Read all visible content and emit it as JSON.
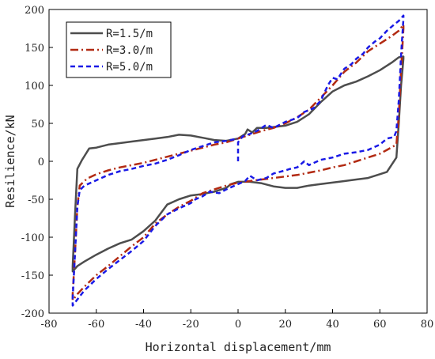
{
  "chart_data": {
    "type": "line",
    "xlabel": "Horizontal displacement/mm",
    "ylabel": "Resilience/kN",
    "xlim": [
      -80,
      80
    ],
    "ylim": [
      -200,
      200
    ],
    "xticks": [
      -80,
      -60,
      -40,
      -20,
      0,
      20,
      40,
      60,
      80
    ],
    "yticks": [
      -200,
      -150,
      -100,
      -50,
      0,
      50,
      100,
      150,
      200
    ],
    "grid": false,
    "legend_position": "top-left",
    "series": [
      {
        "name": "R=1.5/m",
        "color": "#4d4d4d",
        "dash": "solid",
        "points": [
          [
            0,
            30
          ],
          [
            3,
            36
          ],
          [
            4,
            42
          ],
          [
            6,
            38
          ],
          [
            8,
            44
          ],
          [
            12,
            44
          ],
          [
            20,
            47
          ],
          [
            25,
            52
          ],
          [
            30,
            62
          ],
          [
            35,
            78
          ],
          [
            40,
            92
          ],
          [
            45,
            100
          ],
          [
            50,
            105
          ],
          [
            55,
            112
          ],
          [
            60,
            120
          ],
          [
            65,
            130
          ],
          [
            68,
            137
          ],
          [
            70,
            138
          ],
          [
            70,
            135
          ],
          [
            69,
            100
          ],
          [
            68,
            50
          ],
          [
            67,
            5
          ],
          [
            63,
            -14
          ],
          [
            60,
            -17
          ],
          [
            55,
            -22
          ],
          [
            50,
            -24
          ],
          [
            45,
            -26
          ],
          [
            40,
            -28
          ],
          [
            35,
            -30
          ],
          [
            30,
            -32
          ],
          [
            25,
            -35
          ],
          [
            20,
            -35
          ],
          [
            15,
            -33
          ],
          [
            10,
            -29
          ],
          [
            5,
            -27
          ],
          [
            0,
            -27
          ],
          [
            -3,
            -30
          ],
          [
            -5,
            -35
          ],
          [
            -10,
            -40
          ],
          [
            -15,
            -43
          ],
          [
            -20,
            -45
          ],
          [
            -25,
            -50
          ],
          [
            -30,
            -57
          ],
          [
            -35,
            -78
          ],
          [
            -40,
            -92
          ],
          [
            -45,
            -103
          ],
          [
            -50,
            -108
          ],
          [
            -55,
            -115
          ],
          [
            -60,
            -123
          ],
          [
            -65,
            -132
          ],
          [
            -68,
            -138
          ],
          [
            -70,
            -145
          ],
          [
            -70,
            -138
          ],
          [
            -69,
            -70
          ],
          [
            -68,
            -10
          ],
          [
            -66,
            2
          ],
          [
            -63,
            17
          ],
          [
            -60,
            18
          ],
          [
            -55,
            22
          ],
          [
            -50,
            24
          ],
          [
            -45,
            26
          ],
          [
            -40,
            28
          ],
          [
            -35,
            30
          ],
          [
            -30,
            32
          ],
          [
            -25,
            35
          ],
          [
            -20,
            34
          ],
          [
            -15,
            31
          ],
          [
            -10,
            28
          ],
          [
            -5,
            27
          ],
          [
            0,
            30
          ]
        ]
      },
      {
        "name": "R=3.0/m",
        "color": "#b22a12",
        "dash": "dashdot",
        "points": [
          [
            0,
            30
          ],
          [
            5,
            35
          ],
          [
            10,
            40
          ],
          [
            15,
            44
          ],
          [
            20,
            50
          ],
          [
            25,
            58
          ],
          [
            30,
            68
          ],
          [
            35,
            84
          ],
          [
            40,
            100
          ],
          [
            45,
            118
          ],
          [
            50,
            130
          ],
          [
            55,
            145
          ],
          [
            60,
            155
          ],
          [
            65,
            165
          ],
          [
            68,
            172
          ],
          [
            70,
            180
          ],
          [
            70,
            175
          ],
          [
            69,
            120
          ],
          [
            68,
            60
          ],
          [
            67,
            22
          ],
          [
            63,
            15
          ],
          [
            60,
            10
          ],
          [
            55,
            5
          ],
          [
            50,
            0
          ],
          [
            45,
            -5
          ],
          [
            40,
            -8
          ],
          [
            35,
            -12
          ],
          [
            30,
            -15
          ],
          [
            25,
            -18
          ],
          [
            20,
            -20
          ],
          [
            15,
            -22
          ],
          [
            10,
            -24
          ],
          [
            5,
            -26
          ],
          [
            0,
            -28
          ],
          [
            -5,
            -32
          ],
          [
            -10,
            -37
          ],
          [
            -15,
            -42
          ],
          [
            -20,
            -52
          ],
          [
            -25,
            -60
          ],
          [
            -30,
            -70
          ],
          [
            -35,
            -82
          ],
          [
            -40,
            -100
          ],
          [
            -45,
            -112
          ],
          [
            -50,
            -125
          ],
          [
            -55,
            -138
          ],
          [
            -60,
            -150
          ],
          [
            -65,
            -165
          ],
          [
            -68,
            -175
          ],
          [
            -70,
            -183
          ],
          [
            -70,
            -175
          ],
          [
            -69,
            -120
          ],
          [
            -68,
            -60
          ],
          [
            -67,
            -32
          ],
          [
            -64,
            -23
          ],
          [
            -60,
            -17
          ],
          [
            -55,
            -12
          ],
          [
            -50,
            -8
          ],
          [
            -45,
            -5
          ],
          [
            -40,
            -2
          ],
          [
            -35,
            2
          ],
          [
            -30,
            6
          ],
          [
            -25,
            10
          ],
          [
            -20,
            14
          ],
          [
            -15,
            18
          ],
          [
            -10,
            22
          ],
          [
            -5,
            25
          ],
          [
            0,
            30
          ]
        ]
      },
      {
        "name": "R=5.0/m",
        "color": "#1a1ae6",
        "dash": "dashed",
        "points": [
          [
            0,
            0
          ],
          [
            0,
            25
          ],
          [
            2,
            33
          ],
          [
            5,
            36
          ],
          [
            8,
            40
          ],
          [
            12,
            48
          ],
          [
            15,
            44
          ],
          [
            20,
            52
          ],
          [
            25,
            57
          ],
          [
            28,
            65
          ],
          [
            32,
            70
          ],
          [
            35,
            80
          ],
          [
            38,
            100
          ],
          [
            40,
            110
          ],
          [
            42,
            108
          ],
          [
            45,
            122
          ],
          [
            48,
            128
          ],
          [
            50,
            135
          ],
          [
            53,
            142
          ],
          [
            55,
            150
          ],
          [
            58,
            158
          ],
          [
            60,
            162
          ],
          [
            63,
            172
          ],
          [
            66,
            180
          ],
          [
            68,
            185
          ],
          [
            70,
            192
          ],
          [
            70,
            188
          ],
          [
            69,
            140
          ],
          [
            68,
            80
          ],
          [
            67,
            40
          ],
          [
            66,
            32
          ],
          [
            63,
            30
          ],
          [
            60,
            22
          ],
          [
            55,
            15
          ],
          [
            50,
            12
          ],
          [
            45,
            10
          ],
          [
            40,
            5
          ],
          [
            35,
            2
          ],
          [
            30,
            -5
          ],
          [
            28,
            0
          ],
          [
            25,
            -8
          ],
          [
            22,
            -10
          ],
          [
            20,
            -12
          ],
          [
            15,
            -16
          ],
          [
            12,
            -22
          ],
          [
            8,
            -25
          ],
          [
            5,
            -19
          ],
          [
            3,
            -26
          ],
          [
            0,
            -30
          ],
          [
            -5,
            -37
          ],
          [
            -8,
            -42
          ],
          [
            -12,
            -40
          ],
          [
            -15,
            -46
          ],
          [
            -18,
            -50
          ],
          [
            -20,
            -55
          ],
          [
            -25,
            -62
          ],
          [
            -30,
            -70
          ],
          [
            -35,
            -85
          ],
          [
            -40,
            -105
          ],
          [
            -45,
            -118
          ],
          [
            -50,
            -130
          ],
          [
            -55,
            -142
          ],
          [
            -60,
            -155
          ],
          [
            -65,
            -170
          ],
          [
            -68,
            -182
          ],
          [
            -70,
            -190
          ],
          [
            -70,
            -180
          ],
          [
            -69,
            -120
          ],
          [
            -68,
            -60
          ],
          [
            -67,
            -38
          ],
          [
            -65,
            -32
          ],
          [
            -60,
            -25
          ],
          [
            -55,
            -18
          ],
          [
            -50,
            -13
          ],
          [
            -45,
            -10
          ],
          [
            -40,
            -6
          ],
          [
            -35,
            -3
          ],
          [
            -30,
            2
          ],
          [
            -25,
            8
          ],
          [
            -20,
            15
          ],
          [
            -15,
            20
          ],
          [
            -10,
            25
          ],
          [
            -5,
            27
          ],
          [
            0,
            30
          ]
        ]
      }
    ]
  }
}
